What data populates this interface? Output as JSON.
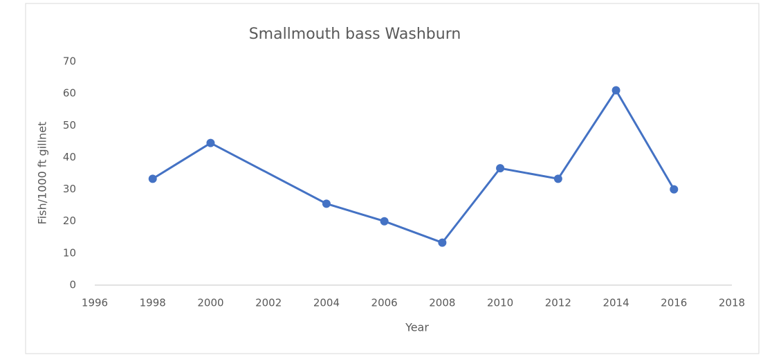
{
  "chart_data": {
    "type": "line",
    "title": "Smallmouth bass  Washburn",
    "x_label": "Year",
    "y_label": "Fish/1000 ft gillnet",
    "x": [
      1998,
      2000,
      2004,
      2006,
      2008,
      2010,
      2012,
      2014,
      2016
    ],
    "series": [
      {
        "name": "Smallmouth bass",
        "color": "#4472c4",
        "values": [
          33.3,
          44.5,
          25.5,
          20,
          13.3,
          36.6,
          33.3,
          61,
          30
        ]
      }
    ],
    "xlim": [
      1996,
      2018
    ],
    "xticks": [
      1996,
      1998,
      2000,
      2002,
      2004,
      2006,
      2008,
      2010,
      2012,
      2014,
      2016,
      2018
    ],
    "ylim": [
      0,
      70
    ],
    "yticks": [
      0,
      10,
      20,
      30,
      40,
      50,
      60,
      70
    ],
    "grid": false
  }
}
